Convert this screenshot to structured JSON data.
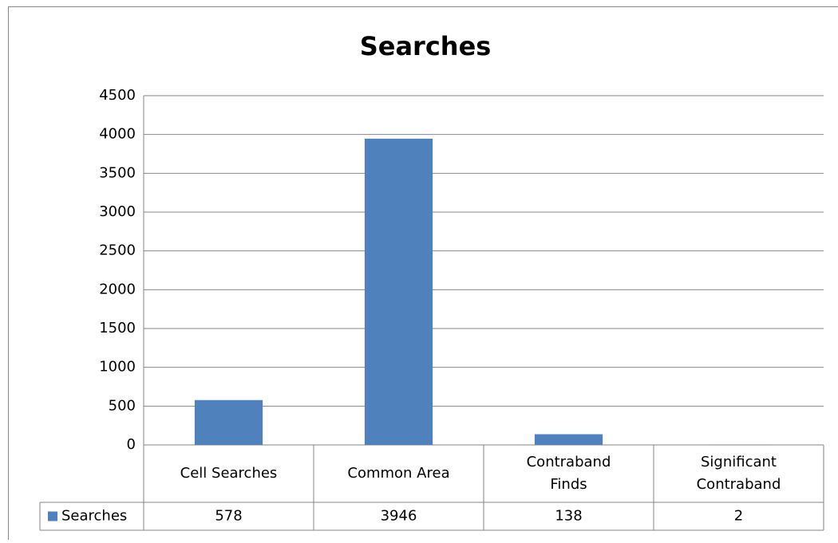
{
  "chart_data": {
    "type": "bar",
    "title": "Searches",
    "categories": [
      "Cell Searches",
      "Common Area",
      "Contraband Finds",
      "Significant Contraband"
    ],
    "series": [
      {
        "name": "Searches",
        "color": "#4f81bd",
        "values": [
          578,
          3946,
          138,
          2
        ]
      }
    ],
    "ylim": [
      0,
      4500
    ],
    "yticks": [
      0,
      500,
      1000,
      1500,
      2000,
      2500,
      3000,
      3500,
      4000,
      4500
    ],
    "grid": true,
    "legend": "data-table"
  }
}
